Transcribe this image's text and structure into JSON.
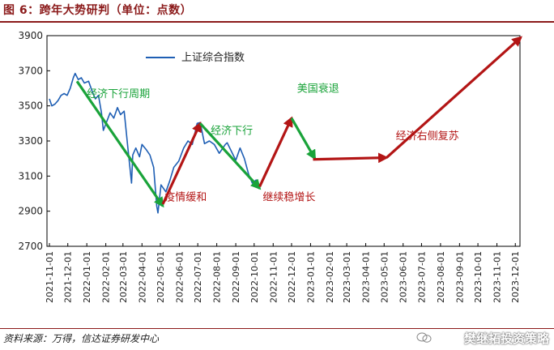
{
  "header": {
    "title": "图 6：跨年大势研判（单位：点数）"
  },
  "footer": {
    "source": "资料来源：万得，信达证券研发中心",
    "watermark": "樊继拓投资策略"
  },
  "colors": {
    "index_line": "#1f5fb4",
    "green": "#1aa33a",
    "red": "#b31515",
    "brand": "#8b1a1a"
  },
  "chart_data": {
    "type": "line",
    "title": "",
    "xlabel": "",
    "ylabel": "",
    "ylim": [
      2700,
      3900
    ],
    "yticks": [
      2700,
      2900,
      3100,
      3300,
      3500,
      3700,
      3900
    ],
    "xticks": [
      "2021-11-01",
      "2021-12-01",
      "2022-01-01",
      "2022-02-01",
      "2022-03-01",
      "2022-04-01",
      "2022-05-01",
      "2022-06-01",
      "2022-07-01",
      "2022-08-01",
      "2022-09-01",
      "2022-10-01",
      "2022-11-01",
      "2022-12-01",
      "2023-01-01",
      "2023-02-01",
      "2023-03-01",
      "2023-04-01",
      "2023-05-01",
      "2023-06-01",
      "2023-07-01",
      "2023-08-01",
      "2023-09-01",
      "2023-10-01",
      "2023-11-01",
      "2023-12-01"
    ],
    "grid": false,
    "legend": {
      "position": "top-left",
      "entries": [
        "上证综合指数"
      ]
    },
    "series": [
      {
        "name": "上证综合指数",
        "points": [
          [
            "2021-11-01",
            3540
          ],
          [
            "2021-11-05",
            3500
          ],
          [
            "2021-11-10",
            3510
          ],
          [
            "2021-11-15",
            3530
          ],
          [
            "2021-11-20",
            3560
          ],
          [
            "2021-11-25",
            3570
          ],
          [
            "2021-11-30",
            3560
          ],
          [
            "2021-12-05",
            3600
          ],
          [
            "2021-12-10",
            3660
          ],
          [
            "2021-12-13",
            3685
          ],
          [
            "2021-12-18",
            3650
          ],
          [
            "2021-12-23",
            3660
          ],
          [
            "2021-12-28",
            3630
          ],
          [
            "2022-01-04",
            3640
          ],
          [
            "2022-01-10",
            3580
          ],
          [
            "2022-01-15",
            3540
          ],
          [
            "2022-01-20",
            3560
          ],
          [
            "2022-01-25",
            3460
          ],
          [
            "2022-01-28",
            3360
          ],
          [
            "2022-02-08",
            3460
          ],
          [
            "2022-02-14",
            3430
          ],
          [
            "2022-02-20",
            3490
          ],
          [
            "2022-02-25",
            3450
          ],
          [
            "2022-03-03",
            3470
          ],
          [
            "2022-03-09",
            3260
          ],
          [
            "2022-03-15",
            3060
          ],
          [
            "2022-03-17",
            3220
          ],
          [
            "2022-03-22",
            3260
          ],
          [
            "2022-03-28",
            3210
          ],
          [
            "2022-04-01",
            3280
          ],
          [
            "2022-04-08",
            3250
          ],
          [
            "2022-04-14",
            3220
          ],
          [
            "2022-04-20",
            3150
          ],
          [
            "2022-04-25",
            2930
          ],
          [
            "2022-04-27",
            2890
          ],
          [
            "2022-05-02",
            3050
          ],
          [
            "2022-05-10",
            3010
          ],
          [
            "2022-05-16",
            3070
          ],
          [
            "2022-05-23",
            3150
          ],
          [
            "2022-05-31",
            3185
          ],
          [
            "2022-06-08",
            3260
          ],
          [
            "2022-06-15",
            3300
          ],
          [
            "2022-06-22",
            3280
          ],
          [
            "2022-06-30",
            3400
          ],
          [
            "2022-07-05",
            3405
          ],
          [
            "2022-07-12",
            3285
          ],
          [
            "2022-07-20",
            3300
          ],
          [
            "2022-07-28",
            3280
          ],
          [
            "2022-08-05",
            3230
          ],
          [
            "2022-08-15",
            3280
          ],
          [
            "2022-08-18",
            3290
          ],
          [
            "2022-08-25",
            3240
          ],
          [
            "2022-09-01",
            3190
          ],
          [
            "2022-09-08",
            3260
          ],
          [
            "2022-09-15",
            3200
          ],
          [
            "2022-09-22",
            3110
          ],
          [
            "2022-09-28",
            3060
          ],
          [
            "2022-10-05",
            3080
          ]
        ]
      }
    ],
    "annotations": [
      {
        "text": "经济下行周期",
        "color": "green",
        "x": "2022-01-01",
        "y": 3550
      },
      {
        "text": "疫情缓和",
        "color": "red",
        "x": "2022-05-08",
        "y": 2960
      },
      {
        "text": "经济下行",
        "color": "green",
        "x": "2022-07-22",
        "y": 3340
      },
      {
        "text": "继续稳增长",
        "color": "red",
        "x": "2022-10-15",
        "y": 2960
      },
      {
        "text": "美国衰退",
        "color": "green",
        "x": "2022-12-10",
        "y": 3580
      },
      {
        "text": "经济右侧复苏",
        "color": "red",
        "x": "2023-05-20",
        "y": 3310
      }
    ],
    "arrows": [
      {
        "color": "green",
        "from": [
          "2021-12-16",
          3640
        ],
        "to": [
          "2022-05-05",
          2930
        ]
      },
      {
        "color": "red",
        "from": [
          "2022-05-05",
          2940
        ],
        "to": [
          "2022-07-05",
          3400
        ]
      },
      {
        "color": "green",
        "from": [
          "2022-07-05",
          3400
        ],
        "to": [
          "2022-10-10",
          3030
        ]
      },
      {
        "color": "red",
        "from": [
          "2022-10-10",
          3040
        ],
        "to": [
          "2022-12-01",
          3430
        ]
      },
      {
        "color": "green",
        "from": [
          "2022-12-01",
          3430
        ],
        "to": [
          "2023-01-08",
          3200
        ]
      },
      {
        "color": "red",
        "from": [
          "2023-01-05",
          3195
        ],
        "to": [
          "2023-05-05",
          3205
        ]
      },
      {
        "color": "red",
        "from": [
          "2023-05-05",
          3205
        ],
        "to": [
          "2023-12-10",
          3890
        ]
      }
    ]
  }
}
